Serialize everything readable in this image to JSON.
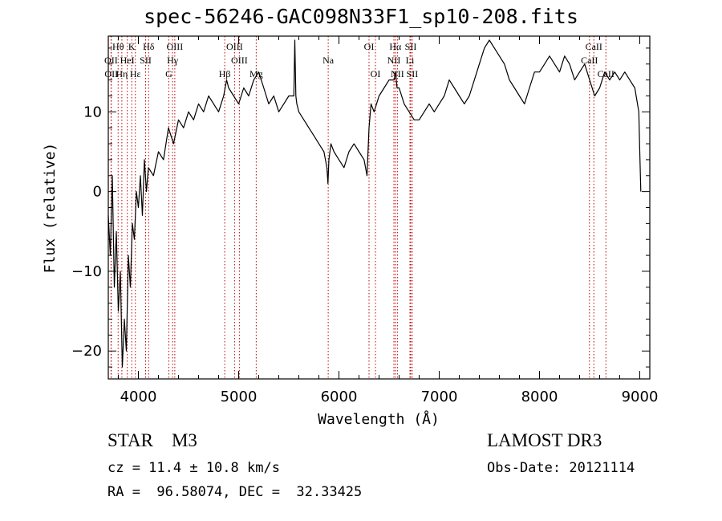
{
  "chart_data": {
    "type": "line",
    "title": "spec-56246-GAC098N33F1_sp10-208.fits",
    "xlabel": "Wavelength (Å)",
    "ylabel": "Flux (relative)",
    "xlim": [
      3700,
      9100
    ],
    "ylim": [
      -23.5,
      19.5
    ],
    "x_ticks": [
      4000,
      5000,
      6000,
      7000,
      8000,
      9000
    ],
    "x_tick_labels": [
      "4000",
      "5000",
      "6000",
      "7000",
      "8000",
      "9000"
    ],
    "y_ticks": [
      -20,
      -10,
      0,
      10
    ],
    "y_tick_labels": [
      "−20",
      "−10",
      "0",
      "10"
    ],
    "series": [
      {
        "name": "flux",
        "x": [
          3700,
          3720,
          3740,
          3760,
          3780,
          3800,
          3820,
          3840,
          3860,
          3880,
          3900,
          3920,
          3940,
          3960,
          3980,
          4000,
          4020,
          4040,
          4060,
          4080,
          4100,
          4150,
          4200,
          4250,
          4300,
          4350,
          4400,
          4450,
          4500,
          4550,
          4600,
          4650,
          4700,
          4750,
          4800,
          4850,
          4880,
          4900,
          4950,
          5000,
          5050,
          5100,
          5150,
          5200,
          5250,
          5300,
          5350,
          5400,
          5450,
          5500,
          5550,
          5560,
          5570,
          5580,
          5600,
          5650,
          5700,
          5750,
          5800,
          5850,
          5880,
          5890,
          5900,
          5920,
          5950,
          6000,
          6050,
          6100,
          6150,
          6200,
          6250,
          6280,
          6300,
          6320,
          6350,
          6400,
          6450,
          6500,
          6550,
          6563,
          6580,
          6600,
          6650,
          6700,
          6750,
          6800,
          6850,
          6900,
          6950,
          7000,
          7050,
          7100,
          7150,
          7200,
          7250,
          7300,
          7350,
          7400,
          7450,
          7500,
          7550,
          7600,
          7650,
          7700,
          7750,
          7800,
          7850,
          7900,
          7950,
          8000,
          8050,
          8100,
          8150,
          8200,
          8250,
          8300,
          8350,
          8400,
          8450,
          8500,
          8550,
          8600,
          8650,
          8700,
          8750,
          8800,
          8850,
          8900,
          8950,
          8990,
          9000,
          9010
        ],
        "y": [
          -3,
          -8,
          2,
          -12,
          -5,
          -15,
          -10,
          -22,
          -16,
          -20,
          -8,
          -12,
          -4,
          -6,
          0,
          -2,
          2,
          -3,
          4,
          0,
          3,
          2,
          5,
          4,
          8,
          6,
          9,
          8,
          10,
          9,
          11,
          10,
          12,
          11,
          10,
          12,
          14,
          13,
          12,
          11,
          13,
          12,
          14,
          15,
          13,
          11,
          12,
          10,
          11,
          12,
          12,
          19,
          12,
          11,
          10,
          9,
          8,
          7,
          6,
          5,
          3,
          1,
          4,
          6,
          5,
          4,
          3,
          5,
          6,
          5,
          4,
          2,
          8,
          11,
          10,
          12,
          13,
          14,
          14,
          15,
          13,
          13,
          11,
          10,
          9,
          9,
          10,
          11,
          10,
          11,
          12,
          14,
          13,
          12,
          11,
          12,
          14,
          16,
          18,
          19,
          18,
          17,
          16,
          14,
          13,
          12,
          11,
          13,
          15,
          15,
          16,
          17,
          16,
          15,
          17,
          16,
          14,
          15,
          16,
          14,
          12,
          13,
          15,
          14,
          15,
          14,
          15,
          14,
          13,
          10,
          5,
          0
        ]
      }
    ],
    "lines": [
      {
        "name": "Hθ",
        "x": 3798,
        "row": 1
      },
      {
        "name": "K",
        "x": 3934,
        "row": 1
      },
      {
        "name": "Hδ",
        "x": 4102,
        "row": 1
      },
      {
        "name": "OIII",
        "x": 4363,
        "row": 1
      },
      {
        "name": "OIII",
        "x": 4959,
        "row": 1
      },
      {
        "name": "OI",
        "x": 6300,
        "row": 1
      },
      {
        "name": "Hα",
        "x": 6563,
        "row": 1
      },
      {
        "name": "SII",
        "x": 6716,
        "row": 1
      },
      {
        "name": "CaII",
        "x": 8542,
        "row": 1
      },
      {
        "name": "OII",
        "x": 3727,
        "row": 2
      },
      {
        "name": "HeI",
        "x": 3889,
        "row": 2
      },
      {
        "name": "SII",
        "x": 4072,
        "row": 2
      },
      {
        "name": "Hγ",
        "x": 4341,
        "row": 2
      },
      {
        "name": "OIII",
        "x": 5007,
        "row": 2
      },
      {
        "name": "Na",
        "x": 5893,
        "row": 2
      },
      {
        "name": "NII",
        "x": 6548,
        "row": 2
      },
      {
        "name": "Li",
        "x": 6708,
        "row": 2
      },
      {
        "name": "CaII",
        "x": 8498,
        "row": 2
      },
      {
        "name": "OII",
        "x": 3730,
        "row": 3
      },
      {
        "name": "Hη",
        "x": 3835,
        "row": 3
      },
      {
        "name": "Hε",
        "x": 3970,
        "row": 3
      },
      {
        "name": "G",
        "x": 4304,
        "row": 3
      },
      {
        "name": "Hβ",
        "x": 4861,
        "row": 3
      },
      {
        "name": "Mg",
        "x": 5175,
        "row": 3
      },
      {
        "name": "OI",
        "x": 6364,
        "row": 3
      },
      {
        "name": "NII",
        "x": 6583,
        "row": 3
      },
      {
        "name": "SII",
        "x": 6731,
        "row": 3
      },
      {
        "name": "CaII",
        "x": 8662,
        "row": 3
      }
    ]
  },
  "info": {
    "object_class": "STAR",
    "subclass": "M3",
    "survey": "LAMOST DR3",
    "cz": "cz = 11.4 ± 10.8 km/s",
    "obs_date": "Obs-Date: 20121114",
    "radec": "RA =  96.58074, DEC =  32.33425"
  }
}
